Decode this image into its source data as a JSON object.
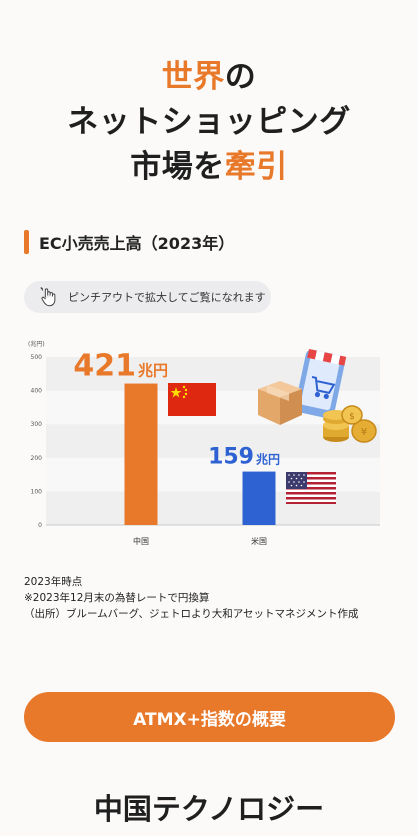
{
  "hero": {
    "line1_accent": "世界",
    "line1_rest": "の",
    "line2": "ネットショッピング",
    "line3_prefix": "市場を",
    "line3_accent": "牽引"
  },
  "section": {
    "title": "EC小売売上高（2023年）"
  },
  "pinch_hint": {
    "text": "ピンチアウトで拡大してご覧になれます",
    "icon": "pinch-hand-icon"
  },
  "chart_data": {
    "type": "bar",
    "ylabel": "(兆円)",
    "ylim": [
      0,
      500
    ],
    "yticks": [
      "0",
      "100",
      "200",
      "300",
      "400",
      "500"
    ],
    "categories": [
      "中国",
      "米国"
    ],
    "values": [
      421,
      159
    ],
    "value_labels": [
      "421",
      "159"
    ],
    "unit_label": "兆円",
    "grid": true,
    "colors": [
      "#e8782a",
      "#2e62d2"
    ],
    "icons": [
      "china-flag-icon",
      "usa-flag-icon",
      "online-shopping-illustration-icon"
    ]
  },
  "notes": {
    "lines": [
      "2023年時点",
      "※2023年12月末の為替レートで円換算",
      "（出所）ブルームバーグ、ジェトロより大和アセットマネジメント作成"
    ]
  },
  "cta": {
    "label": "ATMX+指数の概要"
  },
  "next_section": {
    "title": "中国テクノロジー"
  },
  "colors": {
    "accent": "#e8782a",
    "blue": "#2e62d2"
  }
}
